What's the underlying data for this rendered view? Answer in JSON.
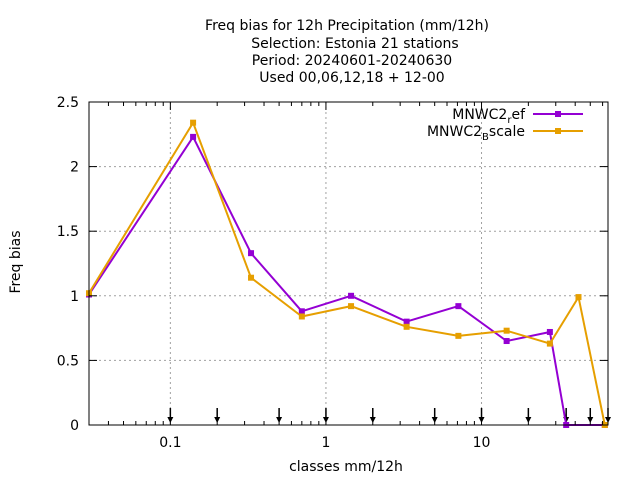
{
  "chart_data": {
    "type": "line",
    "title_lines": [
      "Freq bias  for 12h Precipitation (mm/12h)",
      "Selection: Estonia     21 stations",
      "Period: 20240601-20240630",
      "Used 00,06,12,18 + 12-00"
    ],
    "xlabel": "classes mm/12h",
    "ylabel": "Freq bias",
    "x_scale": "log",
    "xlim": [
      0.03,
      65
    ],
    "ylim": [
      0,
      2.5
    ],
    "x_ticks": [
      0.1,
      1,
      10
    ],
    "x_tick_labels": [
      "0.1",
      "1",
      "10"
    ],
    "y_ticks": [
      0,
      0.5,
      1,
      1.5,
      2,
      2.5
    ],
    "y_tick_labels": [
      "0",
      "0.5",
      "1",
      "1.5",
      "2",
      "2.5"
    ],
    "grid": true,
    "legend_position": "top-right",
    "threshold_arrows": [
      0.1,
      0.2,
      0.5,
      1,
      2,
      5,
      10,
      20,
      35,
      50,
      65
    ],
    "series": [
      {
        "name_main": "MNWC2",
        "name_sub": "r",
        "name_tail": "ef",
        "color": "#9400d3",
        "x": [
          0.03,
          0.14,
          0.33,
          0.7,
          1.45,
          3.3,
          7.1,
          14.5,
          27.5,
          35,
          62
        ],
        "values": [
          1.01,
          2.23,
          1.33,
          0.88,
          1.0,
          0.8,
          0.92,
          0.65,
          0.72,
          0.0,
          0.0
        ]
      },
      {
        "name_main": "MNWC2",
        "name_sub": "B",
        "name_tail": "scale",
        "color": "#e69f00",
        "x": [
          0.03,
          0.14,
          0.33,
          0.7,
          1.45,
          3.3,
          7.1,
          14.5,
          27.5,
          42,
          62
        ],
        "values": [
          1.02,
          2.34,
          1.14,
          0.84,
          0.92,
          0.76,
          0.69,
          0.73,
          0.63,
          0.99,
          0.0
        ]
      }
    ]
  }
}
